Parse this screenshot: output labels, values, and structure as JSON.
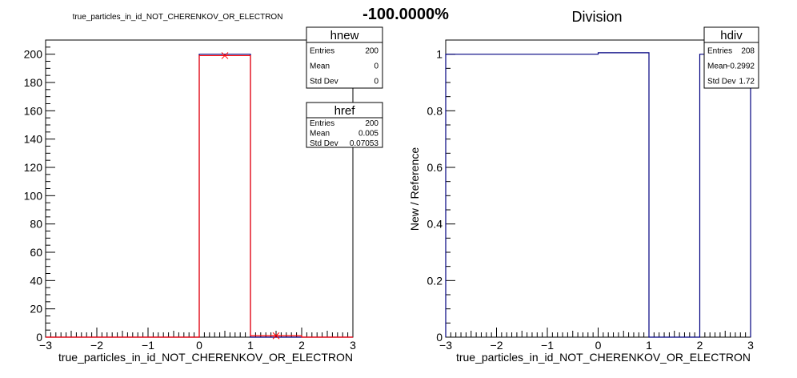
{
  "header": {
    "left_title": "true_particles_in_id_NOT_CHERENKOV_OR_ELECTRON",
    "center_value": "-100.0000%",
    "right_title": "Division"
  },
  "colors": {
    "new": "#000080",
    "ref": "#ff0000",
    "div": "#000080"
  },
  "chart_data": [
    {
      "type": "bar",
      "subtype": "histogram-step",
      "xlabel": "true_particles_in_id_NOT_CHERENKOV_OR_ELECTRON",
      "ylabel": "",
      "xlim": [
        -3,
        3
      ],
      "ylim": [
        0,
        210
      ],
      "x_ticks": [
        -3,
        -2,
        -1,
        0,
        1,
        2,
        3
      ],
      "x_tick_labels": [
        "−3",
        "−2",
        "−1",
        "0",
        "1",
        "2",
        "3"
      ],
      "y_ticks": [
        0,
        20,
        40,
        60,
        80,
        100,
        120,
        140,
        160,
        180,
        200
      ],
      "y_tick_labels": [
        "0",
        "20",
        "40",
        "60",
        "80",
        "100",
        "120",
        "140",
        "160",
        "180",
        "200"
      ],
      "bin_edges": [
        -3,
        -2,
        -1,
        0,
        1,
        2,
        3
      ],
      "series": [
        {
          "name": "hnew",
          "color": "#000080",
          "values": [
            0,
            0,
            0,
            200,
            0,
            0
          ]
        },
        {
          "name": "href",
          "color": "#ff0000",
          "values": [
            0,
            0,
            0,
            199,
            1,
            0
          ],
          "markers": [
            {
              "x": 0.5,
              "y": 199
            },
            {
              "x": 1.5,
              "y": 1
            }
          ]
        }
      ],
      "stats": [
        {
          "name": "hnew",
          "rows": [
            {
              "label": "Entries",
              "value": "200"
            },
            {
              "label": "Mean",
              "value": "0"
            },
            {
              "label": "Std Dev",
              "value": "0"
            }
          ]
        },
        {
          "name": "href",
          "rows": [
            {
              "label": "Entries",
              "value": "200"
            },
            {
              "label": "Mean",
              "value": "0.005"
            },
            {
              "label": "Std Dev",
              "value": "0.07053"
            }
          ]
        }
      ]
    },
    {
      "type": "bar",
      "subtype": "histogram-step",
      "title": "Division",
      "xlabel": "true_particles_in_id_NOT_CHERENKOV_OR_ELECTRON",
      "ylabel": "New / Reference",
      "xlim": [
        -3,
        3
      ],
      "ylim": [
        0,
        1.05
      ],
      "x_ticks": [
        -3,
        -2,
        -1,
        0,
        1,
        2,
        3
      ],
      "x_tick_labels": [
        "−3",
        "−2",
        "−1",
        "0",
        "1",
        "2",
        "3"
      ],
      "y_ticks": [
        0,
        0.2,
        0.4,
        0.6,
        0.8,
        1
      ],
      "y_tick_labels": [
        "0",
        "0.2",
        "0.4",
        "0.6",
        "0.8",
        "1"
      ],
      "bin_edges": [
        -3,
        0,
        1,
        2,
        3
      ],
      "series": [
        {
          "name": "hdiv",
          "color": "#000080",
          "values": [
            1,
            1.005,
            0,
            1
          ]
        }
      ],
      "stats": [
        {
          "name": "hdiv",
          "rows": [
            {
              "label": "Entries",
              "value": "208"
            },
            {
              "label": "Mean",
              "value": "−0.2992"
            },
            {
              "label": "Std Dev",
              "value": "1.72"
            }
          ]
        }
      ]
    }
  ]
}
